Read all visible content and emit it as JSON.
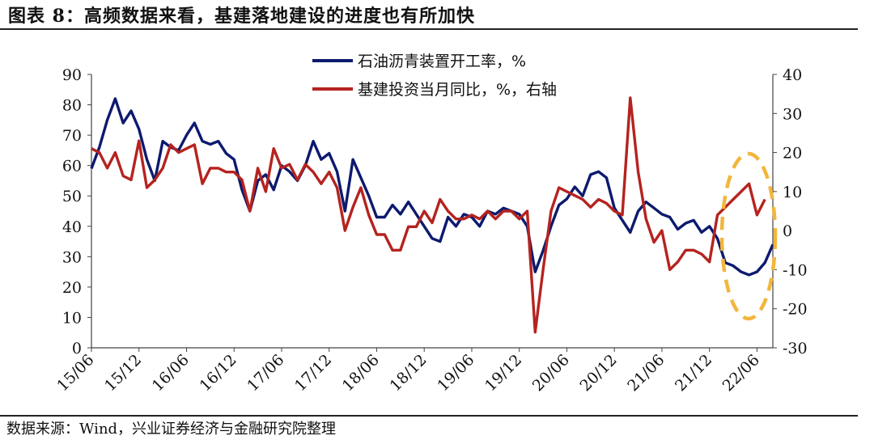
{
  "header": {
    "title": "图表 8：高频数据来看，基建落地建设的进度也有所加快"
  },
  "footer": {
    "source": "数据来源：Wind，兴业证券经济与金融研究院整理"
  },
  "colors": {
    "series_blue": "#0d1a6e",
    "series_red": "#b5231f",
    "highlight_circle": "#f2b63c",
    "axis": "#444444"
  },
  "chart_data": {
    "type": "line",
    "title": "",
    "x_tick_labels": [
      "15/06",
      "15/12",
      "16/06",
      "16/12",
      "17/06",
      "17/12",
      "18/06",
      "18/12",
      "19/06",
      "19/12",
      "20/06",
      "20/12",
      "21/06",
      "21/12",
      "22/06"
    ],
    "x_range": [
      "2015-06",
      "2022-08"
    ],
    "y_left": {
      "label": "",
      "range": [
        0,
        90
      ],
      "ticks": [
        "0",
        "10",
        "20",
        "30",
        "40",
        "50",
        "60",
        "70",
        "80",
        "90"
      ]
    },
    "y_right": {
      "label": "",
      "range": [
        -30,
        40
      ],
      "ticks": [
        "-30",
        "-20",
        "-10",
        "0",
        "10",
        "20",
        "30",
        "40"
      ]
    },
    "grid": false,
    "legend_position": "top-center",
    "annotation": "dashed circle highlighting 2022 data",
    "series": [
      {
        "name": "石油沥青装置开工率，%",
        "axis": "left",
        "color": "#0d1a6e",
        "points": [
          [
            "2015-06",
            59
          ],
          [
            "2015-07",
            66
          ],
          [
            "2015-08",
            75
          ],
          [
            "2015-09",
            82
          ],
          [
            "2015-10",
            74
          ],
          [
            "2015-11",
            78
          ],
          [
            "2015-12",
            72
          ],
          [
            "2016-01",
            62
          ],
          [
            "2016-02",
            55
          ],
          [
            "2016-03",
            68
          ],
          [
            "2016-04",
            66
          ],
          [
            "2016-05",
            65
          ],
          [
            "2016-06",
            70
          ],
          [
            "2016-07",
            74
          ],
          [
            "2016-08",
            68
          ],
          [
            "2016-09",
            67
          ],
          [
            "2016-10",
            68
          ],
          [
            "2016-11",
            64
          ],
          [
            "2016-12",
            62
          ],
          [
            "2017-01",
            52
          ],
          [
            "2017-02",
            45
          ],
          [
            "2017-03",
            55
          ],
          [
            "2017-04",
            57
          ],
          [
            "2017-05",
            52
          ],
          [
            "2017-06",
            60
          ],
          [
            "2017-07",
            58
          ],
          [
            "2017-08",
            55
          ],
          [
            "2017-09",
            60
          ],
          [
            "2017-10",
            68
          ],
          [
            "2017-11",
            62
          ],
          [
            "2017-12",
            64
          ],
          [
            "2018-01",
            58
          ],
          [
            "2018-02",
            45
          ],
          [
            "2018-03",
            62
          ],
          [
            "2018-04",
            56
          ],
          [
            "2018-05",
            50
          ],
          [
            "2018-06",
            43
          ],
          [
            "2018-07",
            43
          ],
          [
            "2018-08",
            47
          ],
          [
            "2018-09",
            44
          ],
          [
            "2018-10",
            48
          ],
          [
            "2018-11",
            44
          ],
          [
            "2018-12",
            40
          ],
          [
            "2019-01",
            36
          ],
          [
            "2019-02",
            35
          ],
          [
            "2019-03",
            43
          ],
          [
            "2019-04",
            40
          ],
          [
            "2019-05",
            44
          ],
          [
            "2019-06",
            43
          ],
          [
            "2019-07",
            40
          ],
          [
            "2019-08",
            45
          ],
          [
            "2019-09",
            44
          ],
          [
            "2019-10",
            46
          ],
          [
            "2019-11",
            45
          ],
          [
            "2019-12",
            44
          ],
          [
            "2020-01",
            40
          ],
          [
            "2020-02",
            25
          ],
          [
            "2020-03",
            32
          ],
          [
            "2020-04",
            40
          ],
          [
            "2020-05",
            47
          ],
          [
            "2020-06",
            49
          ],
          [
            "2020-07",
            53
          ],
          [
            "2020-08",
            50
          ],
          [
            "2020-09",
            57
          ],
          [
            "2020-10",
            58
          ],
          [
            "2020-11",
            56
          ],
          [
            "2020-12",
            46
          ],
          [
            "2021-01",
            42
          ],
          [
            "2021-02",
            38
          ],
          [
            "2021-03",
            45
          ],
          [
            "2021-04",
            48
          ],
          [
            "2021-05",
            46
          ],
          [
            "2021-06",
            44
          ],
          [
            "2021-07",
            43
          ],
          [
            "2021-08",
            39
          ],
          [
            "2021-09",
            41
          ],
          [
            "2021-10",
            42
          ],
          [
            "2021-11",
            38
          ],
          [
            "2021-12",
            40
          ],
          [
            "2022-01",
            36
          ],
          [
            "2022-02",
            28
          ],
          [
            "2022-03",
            27
          ],
          [
            "2022-04",
            25
          ],
          [
            "2022-05",
            24
          ],
          [
            "2022-06",
            25
          ],
          [
            "2022-07",
            28
          ],
          [
            "2022-08",
            34
          ]
        ]
      },
      {
        "name": "基建投资当月同比，%，右轴",
        "axis": "right",
        "color": "#b5231f",
        "points": [
          [
            "2015-06",
            21
          ],
          [
            "2015-07",
            20
          ],
          [
            "2015-08",
            16
          ],
          [
            "2015-09",
            20
          ],
          [
            "2015-10",
            14
          ],
          [
            "2015-11",
            13
          ],
          [
            "2015-12",
            23
          ],
          [
            "2016-01",
            11
          ],
          [
            "2016-02",
            13
          ],
          [
            "2016-03",
            16
          ],
          [
            "2016-04",
            22
          ],
          [
            "2016-05",
            20
          ],
          [
            "2016-06",
            21
          ],
          [
            "2016-07",
            22
          ],
          [
            "2016-08",
            12
          ],
          [
            "2016-09",
            16
          ],
          [
            "2016-10",
            16
          ],
          [
            "2016-11",
            15
          ],
          [
            "2016-12",
            15
          ],
          [
            "2017-01",
            13
          ],
          [
            "2017-02",
            5
          ],
          [
            "2017-03",
            16
          ],
          [
            "2017-04",
            10
          ],
          [
            "2017-05",
            21
          ],
          [
            "2017-06",
            16
          ],
          [
            "2017-07",
            17
          ],
          [
            "2017-08",
            13
          ],
          [
            "2017-09",
            17
          ],
          [
            "2017-10",
            15
          ],
          [
            "2017-11",
            12
          ],
          [
            "2017-12",
            15
          ],
          [
            "2018-01",
            11
          ],
          [
            "2018-02",
            0
          ],
          [
            "2018-03",
            6
          ],
          [
            "2018-04",
            11
          ],
          [
            "2018-05",
            4
          ],
          [
            "2018-06",
            -1
          ],
          [
            "2018-07",
            -1
          ],
          [
            "2018-08",
            -5
          ],
          [
            "2018-09",
            -5
          ],
          [
            "2018-10",
            1
          ],
          [
            "2018-11",
            1
          ],
          [
            "2018-12",
            5
          ],
          [
            "2019-01",
            2
          ],
          [
            "2019-02",
            8
          ],
          [
            "2019-03",
            5
          ],
          [
            "2019-04",
            3
          ],
          [
            "2019-05",
            3
          ],
          [
            "2019-06",
            4
          ],
          [
            "2019-07",
            3
          ],
          [
            "2019-08",
            5
          ],
          [
            "2019-09",
            3
          ],
          [
            "2019-10",
            5
          ],
          [
            "2019-11",
            5
          ],
          [
            "2019-12",
            3
          ],
          [
            "2020-01",
            5
          ],
          [
            "2020-02",
            -26
          ],
          [
            "2020-03",
            -10
          ],
          [
            "2020-04",
            5
          ],
          [
            "2020-05",
            11
          ],
          [
            "2020-06",
            10
          ],
          [
            "2020-07",
            9
          ],
          [
            "2020-08",
            8
          ],
          [
            "2020-09",
            6
          ],
          [
            "2020-10",
            8
          ],
          [
            "2020-11",
            7
          ],
          [
            "2020-12",
            5
          ],
          [
            "2021-01",
            4
          ],
          [
            "2021-02",
            34
          ],
          [
            "2021-03",
            15
          ],
          [
            "2021-04",
            3
          ],
          [
            "2021-05",
            -3
          ],
          [
            "2021-06",
            0
          ],
          [
            "2021-07",
            -10
          ],
          [
            "2021-08",
            -8
          ],
          [
            "2021-09",
            -5
          ],
          [
            "2021-10",
            -5
          ],
          [
            "2021-11",
            -6
          ],
          [
            "2021-12",
            -8
          ],
          [
            "2022-01",
            4
          ],
          [
            "2022-02",
            6
          ],
          [
            "2022-03",
            8
          ],
          [
            "2022-04",
            10
          ],
          [
            "2022-05",
            12
          ],
          [
            "2022-06",
            4
          ],
          [
            "2022-07",
            8
          ]
        ]
      }
    ]
  }
}
